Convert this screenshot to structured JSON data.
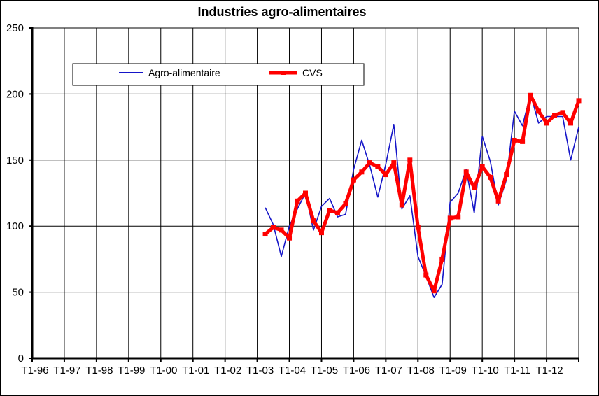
{
  "chart_data": {
    "type": "line",
    "title": "Industries agro-alimentaires",
    "xlabel": "",
    "ylabel": "",
    "ylim": [
      0,
      250
    ],
    "yticks": [
      0,
      50,
      100,
      150,
      200,
      250
    ],
    "xtick_labels": [
      "T1-96",
      "T1-97",
      "T1-98",
      "T1-99",
      "T1-00",
      "T1-01",
      "T1-02",
      "T1-03",
      "T1-04",
      "T1-05",
      "T1-06",
      "T1-07",
      "T1-08",
      "T1-09",
      "T1-10",
      "T1-11",
      "T1-12"
    ],
    "grid": true,
    "legend_position": "top-left",
    "first_quarter_index": 28,
    "series": [
      {
        "name": "Agro-alimentaire",
        "color": "#1515c8",
        "values": [
          114,
          101,
          77,
          100,
          113,
          125,
          97,
          115,
          121,
          107,
          109,
          143,
          165,
          146,
          122,
          147,
          177,
          113,
          123,
          77,
          62,
          46,
          56,
          118,
          125,
          143,
          110,
          168,
          149,
          116,
          135,
          187,
          176,
          200,
          178,
          183,
          183,
          183,
          150,
          175
        ]
      },
      {
        "name": "CVS",
        "color": "#ff0000",
        "values": [
          94,
          99,
          97,
          91,
          119,
          125,
          104,
          95,
          112,
          110,
          117,
          135,
          141,
          148,
          145,
          139,
          148,
          116,
          150,
          99,
          63,
          51,
          75,
          106,
          107,
          141,
          129,
          145,
          137,
          119,
          139,
          165,
          164,
          199,
          187,
          178,
          184,
          186,
          178,
          195
        ]
      }
    ]
  }
}
